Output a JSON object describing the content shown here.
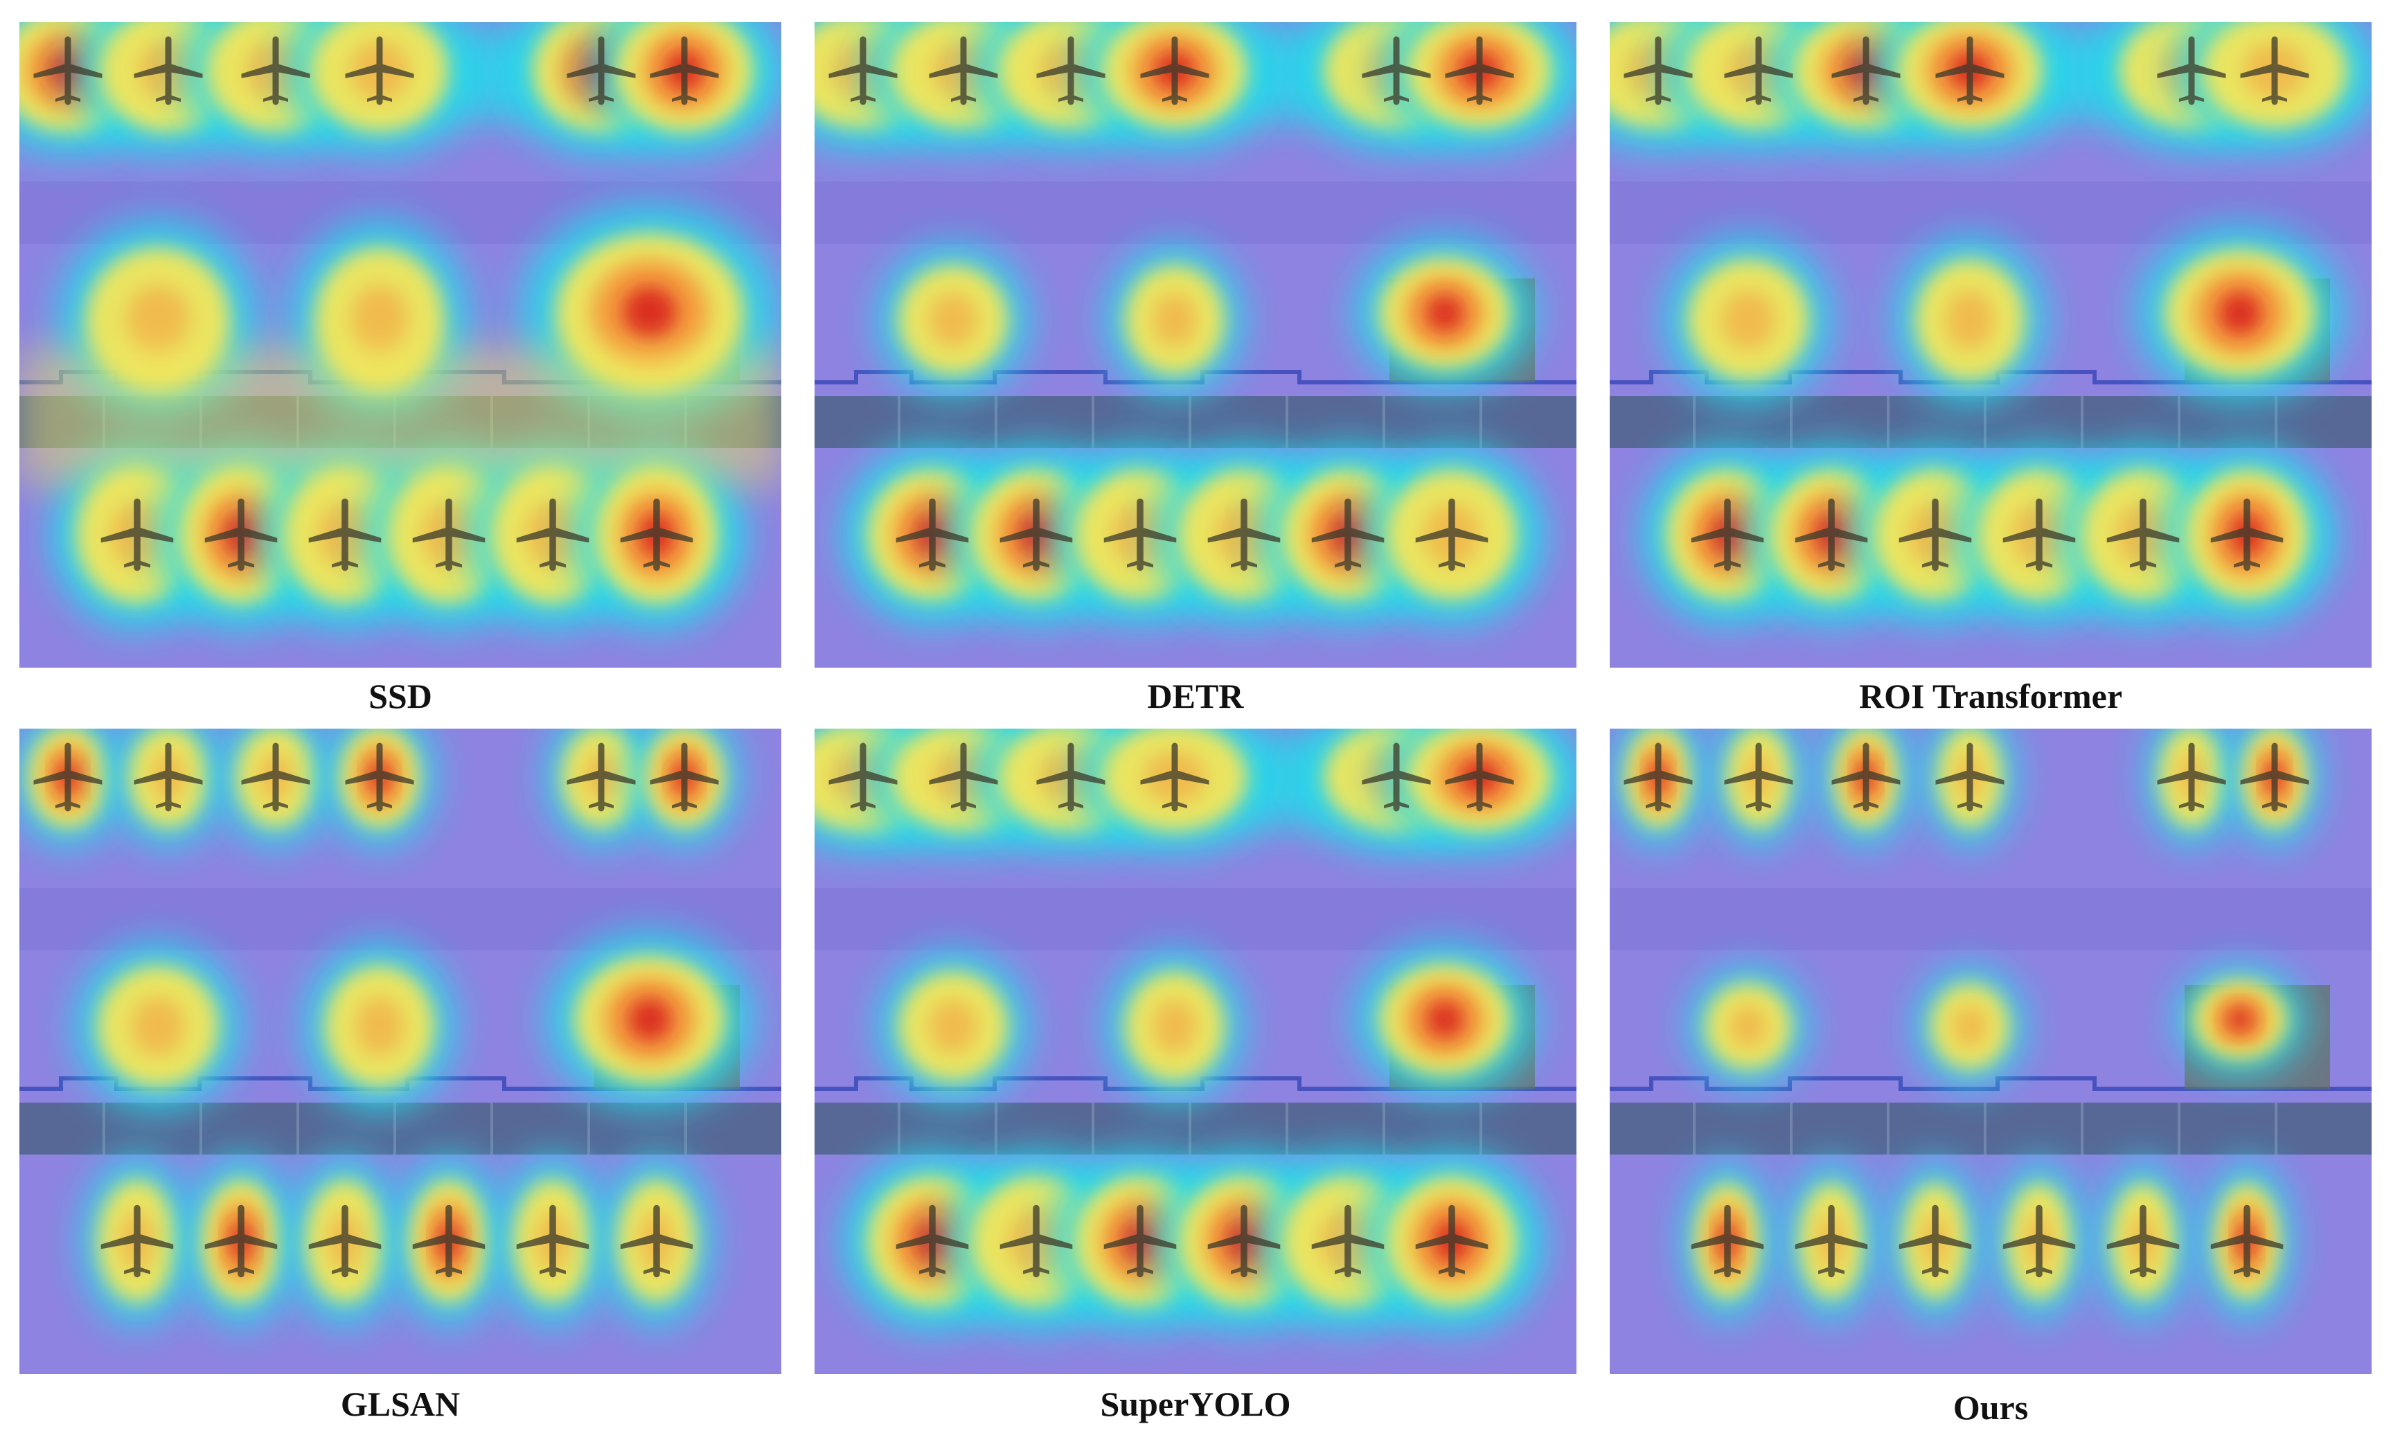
{
  "figure": {
    "panels": [
      {
        "label": "SSD"
      },
      {
        "label": "DETR"
      },
      {
        "label": "ROI Transformer"
      },
      {
        "label": "GLSAN"
      },
      {
        "label": "SuperYOLO"
      },
      {
        "label": "Ours"
      }
    ],
    "colors": {
      "background_cool": "#8e83e0",
      "glow_cyan": "#26d8ea",
      "warm_yellow": "#f4e65a",
      "warm_orange": "#f59a3c",
      "hot_red": "#d8211c",
      "apron_strip": "#4f6488",
      "building": "#5f6f5b"
    }
  }
}
